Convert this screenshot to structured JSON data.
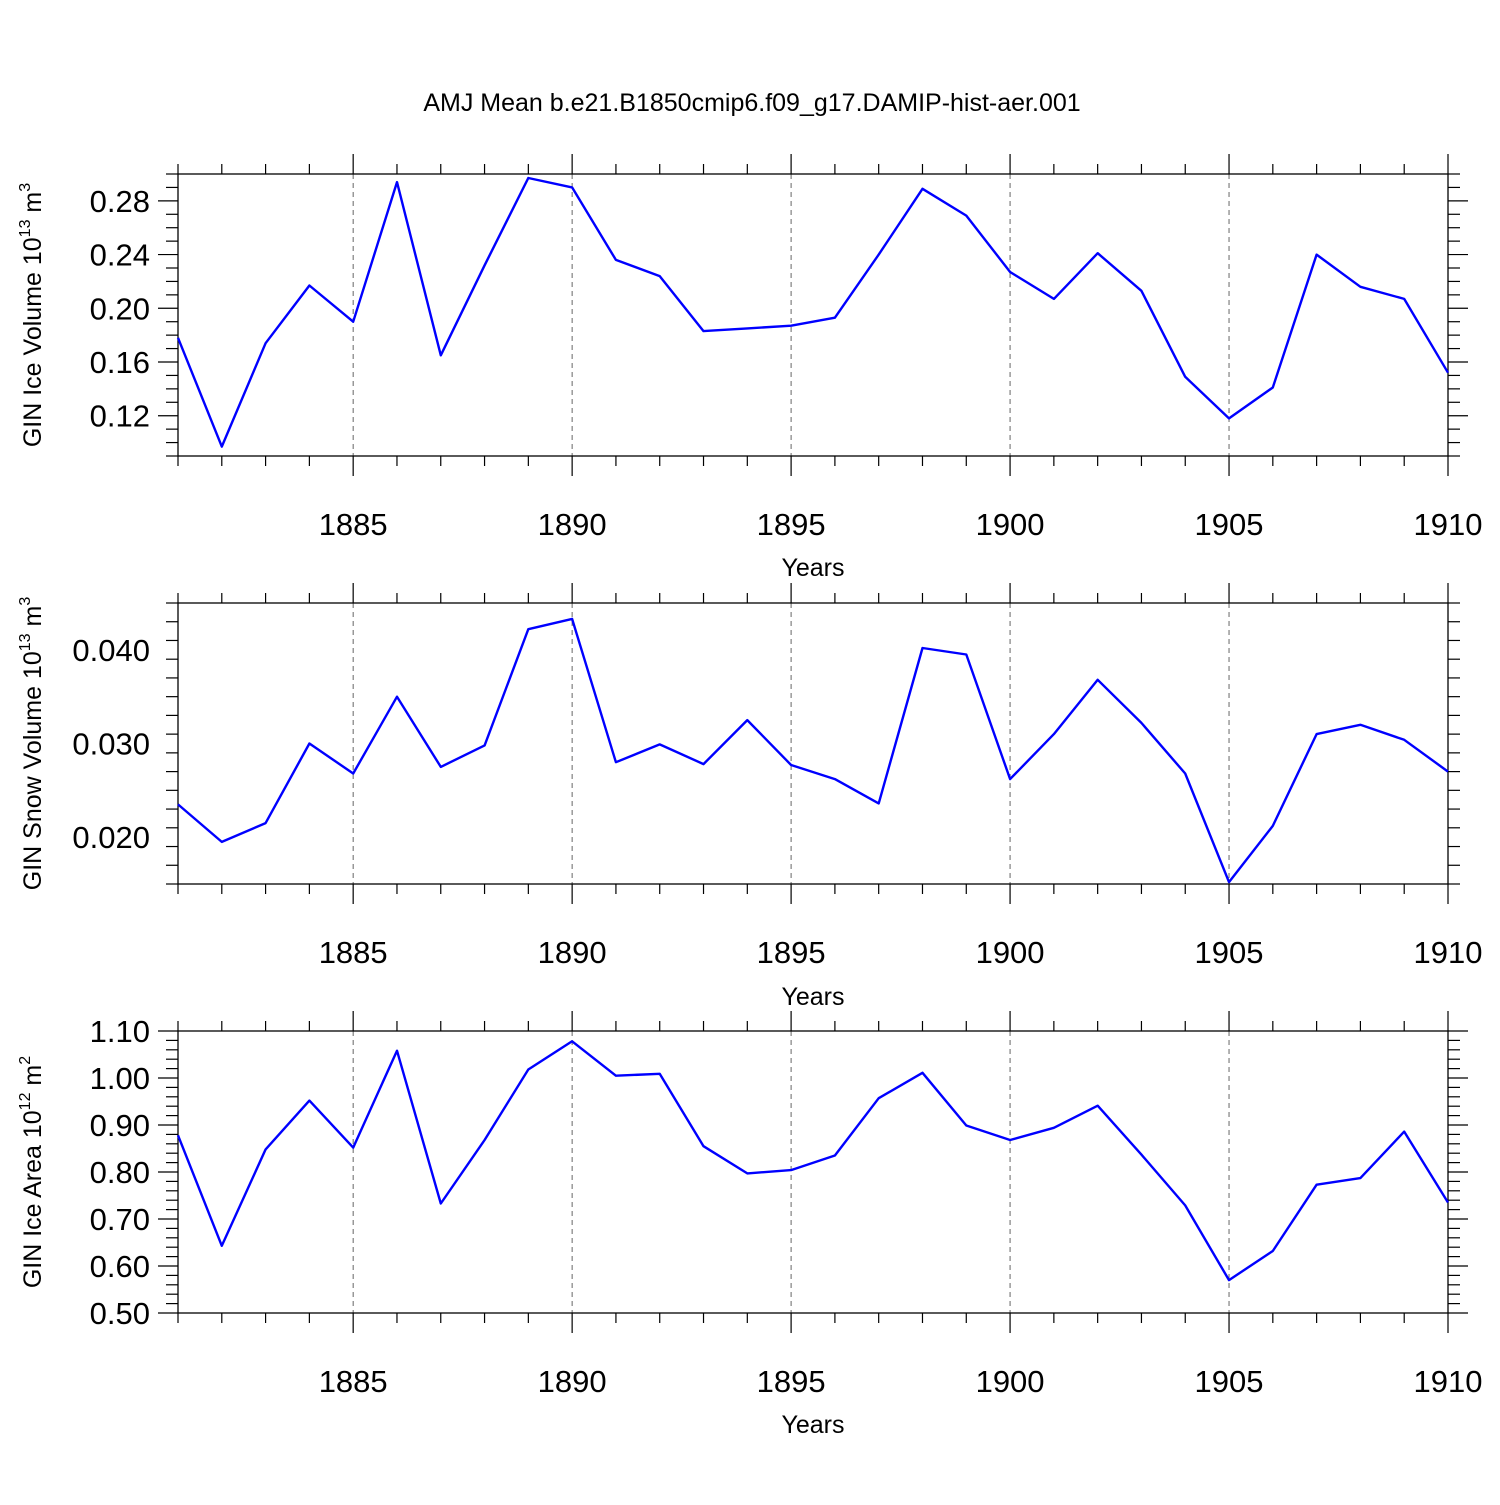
{
  "title": "AMJ Mean b.e21.B1850cmip6.f09_g17.DAMIP-hist-aer.001",
  "colors": {
    "series": "#0000ff",
    "grid": "#666666"
  },
  "chart_data": [
    {
      "type": "line",
      "xlabel": "Years",
      "ylabel": {
        "text": "GIN Ice Volume 10",
        "sup": "13",
        "unit": " m",
        "unit_sup": "3"
      },
      "xlim": [
        1881,
        1910
      ],
      "ylim": [
        0.09,
        0.3
      ],
      "xticks": [
        "1885",
        "1890",
        "1895",
        "1900",
        "1905",
        "1910"
      ],
      "yticks": [
        "0.12",
        "0.16",
        "0.20",
        "0.24",
        "0.28"
      ],
      "grid": "vertical dashed at major x ticks",
      "x": [
        1881,
        1882,
        1883,
        1884,
        1885,
        1886,
        1887,
        1888,
        1889,
        1890,
        1891,
        1892,
        1893,
        1894,
        1895,
        1896,
        1897,
        1898,
        1899,
        1900,
        1901,
        1902,
        1903,
        1904,
        1905,
        1906,
        1907,
        1908,
        1909,
        1910
      ],
      "values": [
        0.178,
        0.097,
        0.174,
        0.217,
        0.19,
        0.294,
        0.165,
        0.232,
        0.297,
        0.29,
        0.236,
        0.224,
        0.183,
        0.185,
        0.187,
        0.193,
        0.24,
        0.289,
        0.269,
        0.227,
        0.207,
        0.241,
        0.213,
        0.149,
        0.118,
        0.141,
        0.24,
        0.216,
        0.207,
        0.152
      ]
    },
    {
      "type": "line",
      "xlabel": "Years",
      "ylabel": {
        "text": "GIN Snow Volume 10",
        "sup": "13",
        "unit": " m",
        "unit_sup": "3"
      },
      "xlim": [
        1881,
        1910
      ],
      "ylim": [
        0.015,
        0.045
      ],
      "xticks": [
        "1885",
        "1890",
        "1895",
        "1900",
        "1905",
        "1910"
      ],
      "yticks": [
        "0.020",
        "0.030",
        "0.040"
      ],
      "grid": "vertical dashed at major x ticks",
      "x": [
        1881,
        1882,
        1883,
        1884,
        1885,
        1886,
        1887,
        1888,
        1889,
        1890,
        1891,
        1892,
        1893,
        1894,
        1895,
        1896,
        1897,
        1898,
        1899,
        1900,
        1901,
        1902,
        1903,
        1904,
        1905,
        1906,
        1907,
        1908,
        1909,
        1910
      ],
      "values": [
        0.0235,
        0.0195,
        0.0215,
        0.03,
        0.0268,
        0.035,
        0.0275,
        0.0298,
        0.0422,
        0.0433,
        0.028,
        0.0299,
        0.0278,
        0.0325,
        0.0277,
        0.0262,
        0.0236,
        0.0402,
        0.0395,
        0.0262,
        0.031,
        0.0368,
        0.0322,
        0.0268,
        0.0152,
        0.0212,
        0.031,
        0.032,
        0.0304,
        0.027
      ]
    },
    {
      "type": "line",
      "xlabel": "Years",
      "ylabel": {
        "text": "GIN Ice Area 10",
        "sup": "12",
        "unit": " m",
        "unit_sup": "2"
      },
      "xlim": [
        1881,
        1910
      ],
      "ylim": [
        0.5,
        1.1
      ],
      "xticks": [
        "1885",
        "1890",
        "1895",
        "1900",
        "1905",
        "1910"
      ],
      "yticks": [
        "0.50",
        "0.60",
        "0.70",
        "0.80",
        "0.90",
        "1.00",
        "1.10"
      ],
      "grid": "vertical dashed at major x ticks",
      "x": [
        1881,
        1882,
        1883,
        1884,
        1885,
        1886,
        1887,
        1888,
        1889,
        1890,
        1891,
        1892,
        1893,
        1894,
        1895,
        1896,
        1897,
        1898,
        1899,
        1900,
        1901,
        1902,
        1903,
        1904,
        1905,
        1906,
        1907,
        1908,
        1909,
        1910
      ],
      "values": [
        0.878,
        0.643,
        0.848,
        0.952,
        0.852,
        1.058,
        0.733,
        0.868,
        1.018,
        1.078,
        1.005,
        1.009,
        0.855,
        0.797,
        0.804,
        0.835,
        0.957,
        1.011,
        0.899,
        0.868,
        0.894,
        0.941,
        0.837,
        0.729,
        0.57,
        0.632,
        0.773,
        0.787,
        0.886,
        0.735
      ]
    }
  ]
}
